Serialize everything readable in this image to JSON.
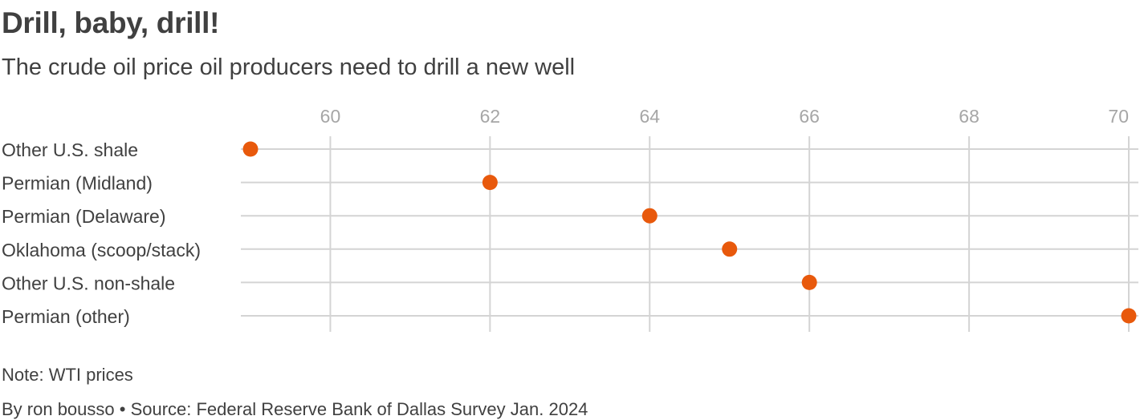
{
  "header": {
    "title": "Drill, baby, drill!",
    "subtitle": "The crude oil price oil producers need to drill a new well"
  },
  "footer": {
    "note": "Note: WTI prices",
    "byline": "By ron bousso • Source: Federal Reserve Bank of Dallas Survey Jan. 2024"
  },
  "colors": {
    "dot": "#e8590c",
    "grid": "#d4d4d4",
    "tick_label": "#a6a6a6",
    "text": "#404040"
  },
  "chart_data": {
    "type": "scatter",
    "title": "Drill, baby, drill!",
    "subtitle": "The crude oil price oil producers need to drill a new well",
    "xlabel": "",
    "ylabel": "",
    "xlim": [
      59,
      70
    ],
    "x_ticks": [
      60,
      62,
      64,
      66,
      68,
      70
    ],
    "categories": [
      "Other U.S. shale",
      "Permian (Midland)",
      "Permian (Delaware)",
      "Oklahoma (scoop/stack)",
      "Other U.S. non-shale",
      "Permian (other)"
    ],
    "values": [
      59,
      62,
      64,
      65,
      66,
      70
    ],
    "grid": true,
    "legend": "none"
  }
}
